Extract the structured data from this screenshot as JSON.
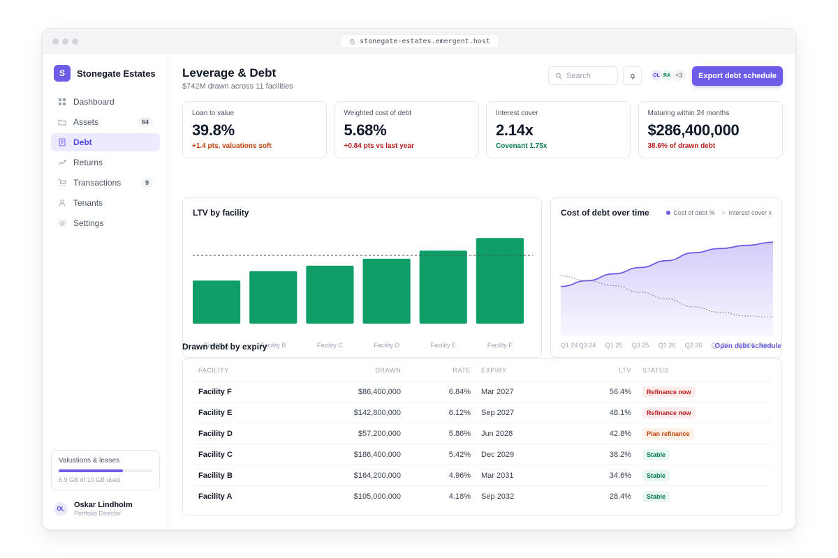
{
  "browser": {
    "url": "stonegate-estates.emergent.host"
  },
  "brand": {
    "initial": "S",
    "name": "Stonegate Estates"
  },
  "sidebar": {
    "items": [
      {
        "label": "Dashboard",
        "icon": "grid-icon",
        "badge": ""
      },
      {
        "label": "Assets",
        "icon": "folder-icon",
        "badge": "64"
      },
      {
        "label": "Debt",
        "icon": "document-icon",
        "badge": "",
        "active": true
      },
      {
        "label": "Returns",
        "icon": "trend-icon",
        "badge": ""
      },
      {
        "label": "Transactions",
        "icon": "cart-icon",
        "badge": "9"
      },
      {
        "label": "Tenants",
        "icon": "user-icon",
        "badge": ""
      },
      {
        "label": "Settings",
        "icon": "gear-icon",
        "badge": ""
      }
    ],
    "storage": {
      "title": "Valuations & leases",
      "used_text": "6.9 GB of 10 GB used",
      "fraction": 0.69
    },
    "user": {
      "initials": "OL",
      "name": "Oskar Lindholm",
      "role": "Portfolio Director"
    }
  },
  "header": {
    "title": "Leverage & Debt",
    "subtitle": "$742M drawn across 11 facilities",
    "search_placeholder": "Search",
    "avatars": [
      "OL",
      "RA"
    ],
    "avatars_more": "+3",
    "export_label": "Export debt schedule"
  },
  "kpis": [
    {
      "label": "Loan to value",
      "value": "39.8%",
      "note": "+1.4 pts, valuations soft",
      "note_color": "#c2410c"
    },
    {
      "label": "Weighted cost of debt",
      "value": "5.68%",
      "note": "+0.84 pts vs last year",
      "note_color": "#b91c1c"
    },
    {
      "label": "Interest cover",
      "value": "2.14x",
      "note": "Covenant 1.75x",
      "note_color": "#047857"
    },
    {
      "label": "Maturing within 24 months",
      "value": "$286,400,000",
      "note": "38.6% of drawn debt",
      "note_color": "#b91c1c"
    }
  ],
  "chart_data": [
    {
      "type": "bar",
      "title": "LTV by facility",
      "categories": [
        "Facility A",
        "Facility B",
        "Facility C",
        "Facility D",
        "Facility E",
        "Facility F"
      ],
      "values": [
        28.4,
        34.6,
        38.2,
        42.8,
        48.1,
        56.4
      ],
      "reference_line": 45,
      "ylim": [
        0,
        60
      ],
      "color": "#0f9d68",
      "grid": false
    },
    {
      "type": "area",
      "title": "Cost of debt over time",
      "x": [
        "Q1 24",
        "Q3 24",
        "Q1 25",
        "Q3 25",
        "Q1 26",
        "Q2 26",
        "Q3 26",
        "Q4 26",
        "Now"
      ],
      "series": [
        {
          "name": "Cost of debt %",
          "values": [
            4.84,
            4.95,
            5.08,
            5.2,
            5.33,
            5.48,
            5.56,
            5.62,
            5.68
          ],
          "color": "#6d5ce7"
        },
        {
          "name": "Interest cover x",
          "values": [
            2.82,
            2.74,
            2.66,
            2.55,
            2.44,
            2.31,
            2.22,
            2.16,
            2.14
          ],
          "color": "#9ca3af",
          "style": "dotted"
        }
      ],
      "legend": "top-right",
      "grid": false
    }
  ],
  "table": {
    "title": "Drawn debt by expiry",
    "link": "Open debt schedule",
    "columns": [
      "FACILITY",
      "DRAWN",
      "RATE",
      "EXPIRY",
      "LTV",
      "STATUS"
    ],
    "rows": [
      {
        "facility": "Facility F",
        "drawn": "$86,400,000",
        "rate": "6.84%",
        "expiry": "Mar 2027",
        "ltv": "56.4%",
        "status": "Refinance now",
        "status_kind": "danger"
      },
      {
        "facility": "Facility E",
        "drawn": "$142,800,000",
        "rate": "6.12%",
        "expiry": "Sep 2027",
        "ltv": "48.1%",
        "status": "Refinance now",
        "status_kind": "danger"
      },
      {
        "facility": "Facility D",
        "drawn": "$57,200,000",
        "rate": "5.86%",
        "expiry": "Jun 2028",
        "ltv": "42.8%",
        "status": "Plan refinance",
        "status_kind": "warn"
      },
      {
        "facility": "Facility C",
        "drawn": "$186,400,000",
        "rate": "5.42%",
        "expiry": "Dec 2029",
        "ltv": "38.2%",
        "status": "Stable",
        "status_kind": "ok"
      },
      {
        "facility": "Facility B",
        "drawn": "$164,200,000",
        "rate": "4.96%",
        "expiry": "Mar 2031",
        "ltv": "34.6%",
        "status": "Stable",
        "status_kind": "ok"
      },
      {
        "facility": "Facility A",
        "drawn": "$105,000,000",
        "rate": "4.18%",
        "expiry": "Sep 2032",
        "ltv": "28.4%",
        "status": "Stable",
        "status_kind": "ok"
      }
    ]
  },
  "colors": {
    "accent": "#6d5ce7",
    "bar": "#0f9d68",
    "danger_bg": "#fdecec",
    "danger_fg": "#b91c1c",
    "warn_bg": "#fff1e6",
    "warn_fg": "#c2410c",
    "ok_bg": "#e8f7f0",
    "ok_fg": "#047857"
  }
}
